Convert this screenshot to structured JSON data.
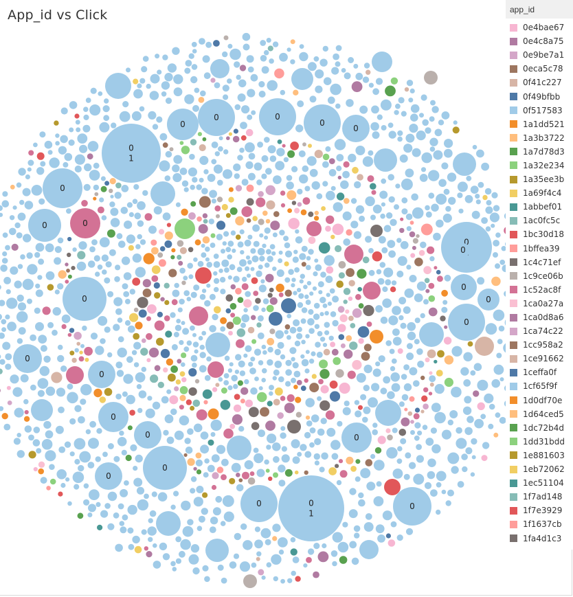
{
  "title": "App_id  vs Click",
  "legend": {
    "title": "app_id",
    "items": [
      {
        "label": "0e4bae67",
        "color": "#f7b6d2"
      },
      {
        "label": "0e4c8a75",
        "color": "#b07aa1"
      },
      {
        "label": "0e9be7a1",
        "color": "#d4a6c8"
      },
      {
        "label": "0eca5c78",
        "color": "#9d7660"
      },
      {
        "label": "0f41c227",
        "color": "#d7b5a6"
      },
      {
        "label": "0f49bfbb",
        "color": "#4e79a7"
      },
      {
        "label": "0f517583",
        "color": "#a0cbe8"
      },
      {
        "label": "1a1dd521",
        "color": "#f28e2b"
      },
      {
        "label": "1a3b3722",
        "color": "#ffbe7d"
      },
      {
        "label": "1a7d78d3",
        "color": "#59a14f"
      },
      {
        "label": "1a32e234",
        "color": "#8cd17d"
      },
      {
        "label": "1a35ee3b",
        "color": "#b6992d"
      },
      {
        "label": "1a69f4c4",
        "color": "#f1ce63"
      },
      {
        "label": "1abbef01",
        "color": "#499894"
      },
      {
        "label": "1ac0fc5c",
        "color": "#86bcb6"
      },
      {
        "label": "1bc30d18",
        "color": "#e15759"
      },
      {
        "label": "1bffea39",
        "color": "#ff9d9a"
      },
      {
        "label": "1c4c71ef",
        "color": "#79706e"
      },
      {
        "label": "1c9ce06b",
        "color": "#bab0ac"
      },
      {
        "label": "1c52ac8f",
        "color": "#d37295"
      },
      {
        "label": "1ca0a27a",
        "color": "#fabfd2"
      },
      {
        "label": "1ca0d8a6",
        "color": "#b07aa1"
      },
      {
        "label": "1ca74c22",
        "color": "#d4a6c8"
      },
      {
        "label": "1cc958a2",
        "color": "#9d7660"
      },
      {
        "label": "1ce91662",
        "color": "#d7b5a6"
      },
      {
        "label": "1ceffa0f",
        "color": "#4e79a7"
      },
      {
        "label": "1cf65f9f",
        "color": "#a0cbe8"
      },
      {
        "label": "1d0df70e",
        "color": "#f28e2b"
      },
      {
        "label": "1d64ced5",
        "color": "#ffbe7d"
      },
      {
        "label": "1dc72b4d",
        "color": "#59a14f"
      },
      {
        "label": "1dd31bdd",
        "color": "#8cd17d"
      },
      {
        "label": "1e881603",
        "color": "#b6992d"
      },
      {
        "label": "1eb72062",
        "color": "#f1ce63"
      },
      {
        "label": "1ec51104",
        "color": "#499894"
      },
      {
        "label": "1f7ad148",
        "color": "#86bcb6"
      },
      {
        "label": "1f7e3929",
        "color": "#e15759"
      },
      {
        "label": "1f1637cb",
        "color": "#ff9d9a"
      },
      {
        "label": "1fa4d1c3",
        "color": "#79706e"
      }
    ]
  },
  "chart_data": {
    "type": "packed-bubble",
    "color_field": "app_id",
    "label_field": "click",
    "labeled_bubbles": [
      {
        "app_id": "0f517583",
        "labels": [
          "0",
          "1"
        ]
      },
      {
        "app_id": "0f517583",
        "labels": [
          "0",
          "1"
        ]
      },
      {
        "app_id": "0f517583",
        "labels": [
          "0",
          "1"
        ]
      },
      {
        "app_id": "0f517583",
        "labels": [
          "0"
        ]
      },
      {
        "app_id": "0f517583",
        "labels": [
          "0"
        ]
      },
      {
        "app_id": "0f517583",
        "labels": [
          "0"
        ]
      },
      {
        "app_id": "0f517583",
        "labels": [
          "0"
        ]
      },
      {
        "app_id": "0f517583",
        "labels": [
          "0"
        ]
      },
      {
        "app_id": "0f517583",
        "labels": [
          "0"
        ]
      },
      {
        "app_id": "0f517583",
        "labels": [
          "0"
        ]
      },
      {
        "app_id": "0f517583",
        "labels": [
          "0"
        ]
      },
      {
        "app_id": "0f517583",
        "labels": [
          "0"
        ]
      },
      {
        "app_id": "0f517583",
        "labels": [
          "0"
        ]
      },
      {
        "app_id": "0f517583",
        "labels": [
          "0"
        ]
      },
      {
        "app_id": "0f517583",
        "labels": [
          "0"
        ]
      },
      {
        "app_id": "0f517583",
        "labels": [
          "0"
        ]
      },
      {
        "app_id": "0f517583",
        "labels": [
          "0"
        ]
      },
      {
        "app_id": "0f517583",
        "labels": [
          "0"
        ]
      },
      {
        "app_id": "0f517583",
        "labels": [
          "0"
        ]
      },
      {
        "app_id": "0f517583",
        "labels": [
          "0"
        ]
      },
      {
        "app_id": "0f517583",
        "labels": [
          "0"
        ]
      },
      {
        "app_id": "0f517583",
        "labels": [
          "0"
        ]
      },
      {
        "app_id": "0f517583",
        "labels": [
          "0"
        ]
      },
      {
        "app_id": "0f517583",
        "labels": [
          "0"
        ]
      },
      {
        "app_id": "1c52ac8f",
        "labels": [
          "0"
        ]
      }
    ]
  }
}
